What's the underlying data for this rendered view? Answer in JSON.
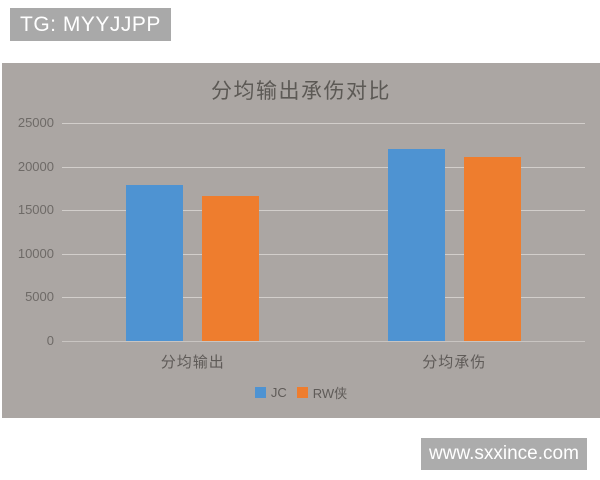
{
  "badges": {
    "top_left": "TG: MYYJJPP",
    "bottom_right": "www.sxxince.com"
  },
  "chart_data": {
    "type": "bar",
    "title": "分均输出承伤对比",
    "categories": [
      "分均输出",
      "分均承伤"
    ],
    "series": [
      {
        "name": "JC",
        "color": "#4e93d2",
        "values": [
          17900,
          22000
        ]
      },
      {
        "name": "RW侠",
        "color": "#ee7d2e",
        "values": [
          16600,
          21100
        ]
      }
    ],
    "xlabel": "",
    "ylabel": "",
    "ylim": [
      0,
      25000
    ],
    "yticks": [
      0,
      5000,
      10000,
      15000,
      20000,
      25000
    ],
    "grid": true,
    "legend_position": "bottom",
    "plot_background": "#aba6a3"
  }
}
